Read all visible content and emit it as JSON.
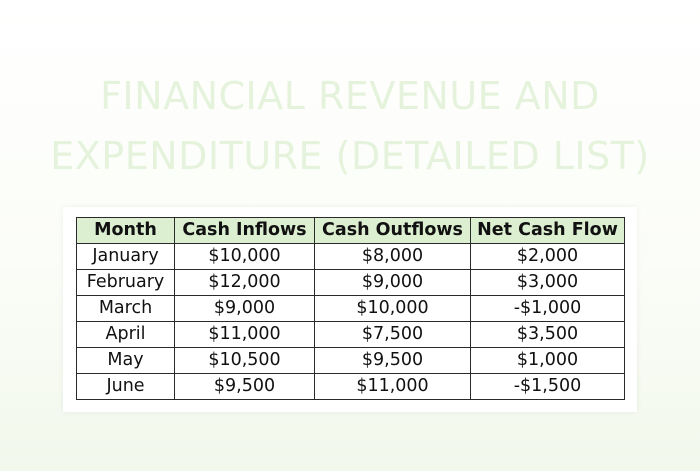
{
  "title": {
    "line1": "FINANCIAL REVENUE AND",
    "line2": "EXPENDITURE (DETAILED LIST)"
  },
  "table": {
    "headers": [
      "Month",
      "Cash Inflows",
      "Cash Outflows",
      "Net Cash Flow"
    ],
    "rows": [
      [
        "January",
        "$10,000",
        "$8,000",
        "$2,000"
      ],
      [
        "February",
        "$12,000",
        "$9,000",
        "$3,000"
      ],
      [
        "March",
        "$9,000",
        "$10,000",
        "-$1,000"
      ],
      [
        "April",
        "$11,000",
        "$7,500",
        "$3,500"
      ],
      [
        "May",
        "$10,500",
        "$9,500",
        "$1,000"
      ],
      [
        "June",
        "$9,500",
        "$11,000",
        "-$1,500"
      ]
    ]
  },
  "colors": {
    "header_fill": "#dcefd0",
    "title_text": "#e6f3dc",
    "border": "#2a2a2a"
  }
}
